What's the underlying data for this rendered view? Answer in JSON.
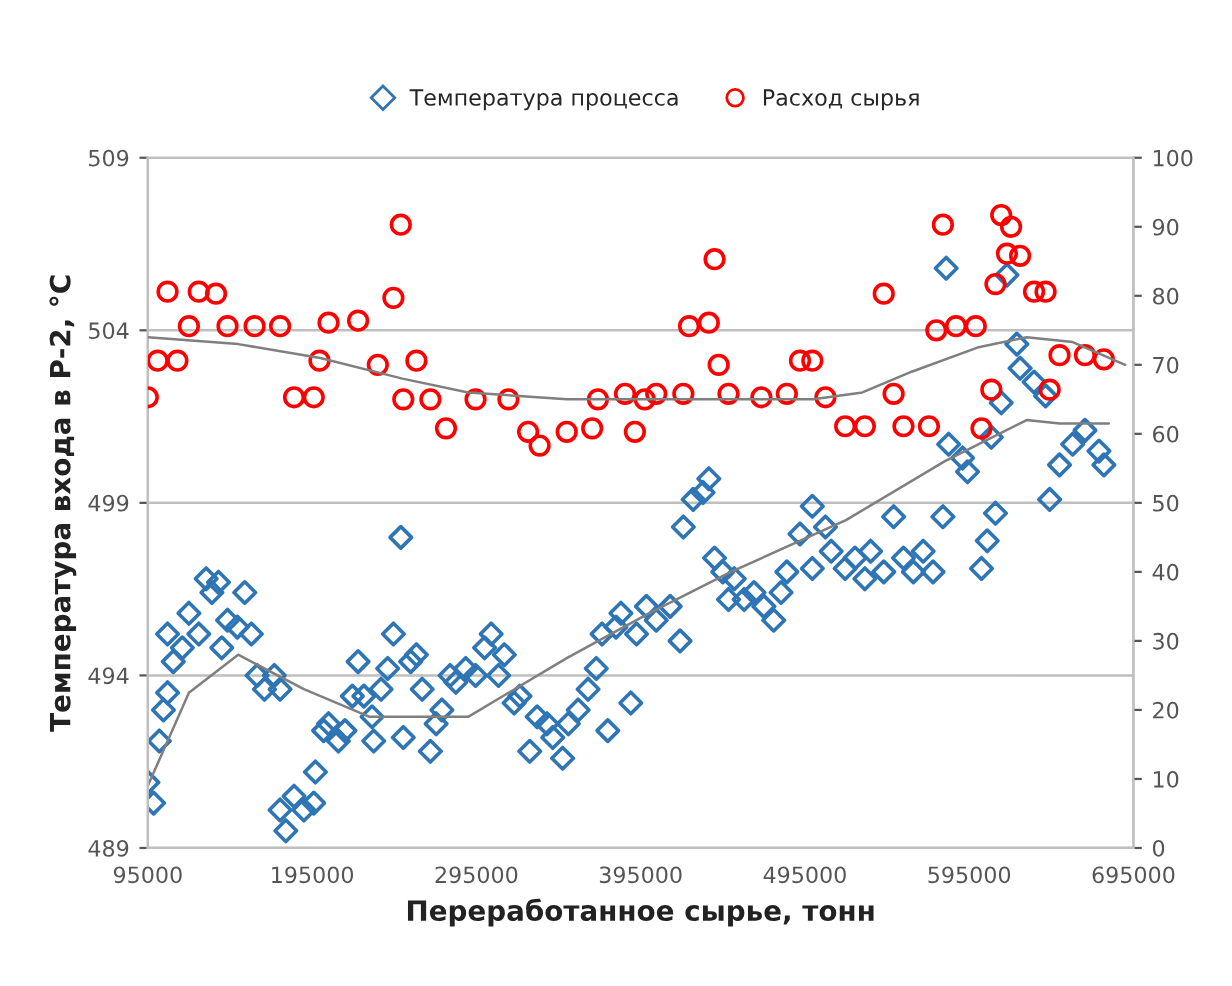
{
  "chart_data": {
    "type": "scatter",
    "xlabel": "Переработанное сырье, тонн",
    "ylabel": "Температура входа в Р-2, °С",
    "xlim": [
      95000,
      695000
    ],
    "xticks": [
      95000,
      195000,
      295000,
      395000,
      495000,
      595000,
      695000
    ],
    "ylim": [
      489,
      509
    ],
    "yticks": [
      489,
      494,
      499,
      504,
      509
    ],
    "y2lim": [
      0,
      100
    ],
    "y2ticks": [
      0,
      10,
      20,
      30,
      40,
      50,
      60,
      70,
      80,
      90,
      100
    ],
    "grid": "y",
    "legend": "top",
    "series": [
      {
        "name": "Температура процесса",
        "color": "#2e75b6",
        "marker": "diamond",
        "axis": "y",
        "x": [
          95000,
          98500,
          102000,
          104500,
          107000,
          107000,
          110500,
          116000,
          120000,
          126000,
          130500,
          134000,
          138000,
          140000,
          143500,
          149500,
          154000,
          158000,
          161500,
          166000,
          172000,
          175500,
          175500,
          179000,
          184000,
          190000,
          196000,
          197000,
          202000,
          205000,
          211000,
          215000,
          219500,
          223000,
          226500,
          231500,
          232500,
          237000,
          241000,
          244500,
          249000,
          250500,
          255000,
          258500,
          262000,
          267000,
          270500,
          274000,
          279000,
          282500,
          288500,
          294500,
          300000,
          304000,
          308500,
          312000,
          318000,
          321500,
          327500,
          332000,
          338000,
          341500,
          347500,
          351000,
          357000,
          363000,
          368000,
          371500,
          375000,
          380000,
          383000,
          389000,
          392500,
          398500,
          404500,
          413000,
          419000,
          421000,
          427000,
          433000,
          436500,
          440000,
          445000,
          448500,
          452000,
          458000,
          464000,
          470000,
          476000,
          480500,
          484000,
          492000,
          499500,
          499500,
          507500,
          511000,
          519500,
          525500,
          531500,
          535000,
          543000,
          549000,
          555000,
          561000,
          567000,
          573000,
          579000,
          581000,
          582500,
          591000,
          594000,
          602500,
          606000,
          608500,
          611000,
          614500,
          618000,
          624000,
          626000,
          634500,
          641500,
          644000,
          650000,
          658000,
          665500,
          674000,
          677000
        ],
        "values": [
          490.9,
          490.3,
          492.1,
          493.0,
          493.5,
          495.2,
          494.4,
          494.8,
          495.8,
          495.2,
          496.8,
          496.4,
          496.7,
          494.8,
          495.6,
          495.4,
          496.4,
          495.2,
          494.0,
          493.6,
          494.0,
          493.6,
          490.1,
          489.5,
          490.5,
          490.1,
          490.3,
          491.2,
          492.4,
          492.6,
          492.1,
          492.4,
          493.4,
          494.4,
          493.4,
          492.8,
          492.1,
          493.6,
          494.2,
          495.2,
          498.0,
          492.2,
          494.4,
          494.6,
          493.6,
          491.8,
          492.6,
          493.0,
          494.0,
          493.8,
          494.2,
          494.0,
          494.8,
          495.2,
          494.0,
          494.6,
          493.2,
          493.4,
          491.8,
          492.8,
          492.6,
          492.2,
          491.6,
          492.6,
          493.0,
          493.6,
          494.2,
          495.2,
          492.4,
          495.4,
          495.8,
          493.2,
          495.2,
          496.0,
          495.6,
          496.0,
          495.0,
          498.3,
          499.1,
          499.3,
          499.7,
          497.4,
          497.0,
          496.2,
          496.8,
          496.2,
          496.4,
          496.0,
          495.6,
          496.4,
          497.0,
          498.1,
          498.9,
          497.1,
          498.3,
          497.6,
          497.1,
          497.4,
          496.8,
          497.6,
          497.0,
          498.6,
          497.4,
          497.0,
          497.6,
          497.0,
          498.6,
          505.8,
          500.7,
          500.3,
          499.9,
          497.1,
          497.9,
          500.9,
          498.7,
          501.9,
          505.6,
          503.6,
          502.9,
          502.5,
          502.1,
          499.1,
          500.1,
          500.7,
          501.1,
          500.5,
          500.1
        ]
      },
      {
        "name": "Расход сырья",
        "color": "#ff0000",
        "marker": "circle",
        "axis": "y2",
        "x": [
          95000,
          101000,
          107000,
          113000,
          120000,
          126000,
          136500,
          143500,
          160000,
          175500,
          184000,
          196000,
          199500,
          205000,
          223000,
          235000,
          244500,
          249000,
          250500,
          258500,
          267000,
          276500,
          294500,
          314500,
          326500,
          333500,
          350000,
          365500,
          369000,
          385500,
          391500,
          397500,
          404500,
          421000,
          424500,
          436500,
          440000,
          442500,
          448500,
          468500,
          484000,
          492000,
          499500,
          507500,
          519500,
          531500,
          543000,
          549000,
          555000,
          570500,
          575000,
          579000,
          587000,
          599000,
          602500,
          608500,
          611000,
          614500,
          618000,
          620500,
          626000,
          634500,
          641500,
          644000,
          650000,
          665500,
          677000
        ],
        "values": [
          65.3,
          70.6,
          80.6,
          70.6,
          75.6,
          80.6,
          80.3,
          75.6,
          75.6,
          75.6,
          65.3,
          65.3,
          70.6,
          76.1,
          76.4,
          70.0,
          79.7,
          90.3,
          65.0,
          70.6,
          65.0,
          60.8,
          65.0,
          65.0,
          60.3,
          58.3,
          60.3,
          60.8,
          65.0,
          65.8,
          60.3,
          65.0,
          65.8,
          65.8,
          75.6,
          76.1,
          85.3,
          70.0,
          65.8,
          65.3,
          65.8,
          70.6,
          70.6,
          65.3,
          61.1,
          61.1,
          80.3,
          65.8,
          61.1,
          61.1,
          75.0,
          90.3,
          75.6,
          75.6,
          60.8,
          66.4,
          81.7,
          91.7,
          86.1,
          90.0,
          85.8,
          80.6,
          80.6,
          66.4,
          71.4,
          71.4,
          70.8
        ]
      },
      {
        "type": "line",
        "color": "#7f7f7f",
        "axis": "y",
        "marker": "none",
        "x": [
          95000,
          120000,
          150000,
          190000,
          230000,
          290000,
          350000,
          400000,
          450000,
          520000,
          580000,
          630000,
          650000,
          680000
        ],
        "values": [
          490.8,
          493.5,
          494.6,
          493.6,
          492.8,
          492.8,
          494.5,
          495.8,
          497.0,
          498.5,
          500.2,
          501.4,
          501.3,
          501.3
        ]
      },
      {
        "type": "line",
        "color": "#7f7f7f",
        "axis": "y2",
        "marker": "none",
        "x": [
          95000,
          150000,
          200000,
          250000,
          290000,
          350000,
          400000,
          450000,
          500000,
          530000,
          560000,
          600000,
          630000,
          658000,
          690000
        ],
        "values": [
          74.0,
          73.0,
          71.0,
          68.0,
          66.0,
          65.0,
          65.0,
          65.0,
          65.0,
          66.0,
          69.0,
          72.5,
          74.0,
          73.3,
          70.0
        ]
      }
    ]
  }
}
